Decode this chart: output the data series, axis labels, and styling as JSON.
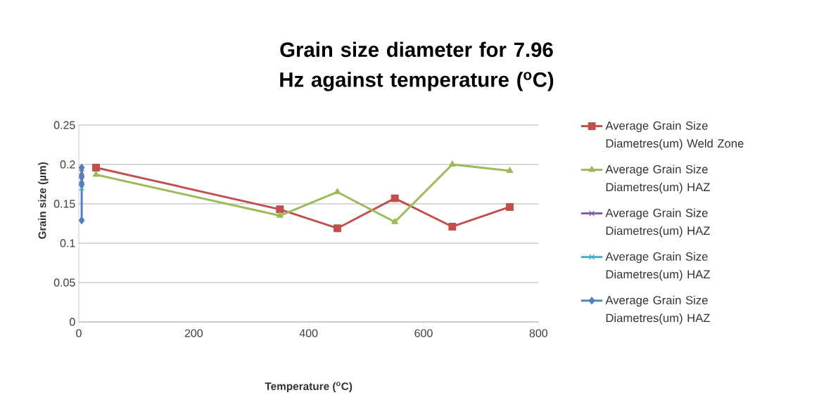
{
  "chart_data": {
    "type": "line",
    "title": "Grain size diameter for 7.96 Hz against temperature ($^{o}$C)",
    "xlabel": "Temperature ($^{o}$C)",
    "ylabel": "Grain size (µm)",
    "xlim": [
      0,
      800
    ],
    "xticks": [
      0,
      200,
      400,
      600,
      800
    ],
    "ylim": [
      0,
      0.25
    ],
    "yticks": [
      0,
      0.05,
      0.1,
      0.15,
      0.2,
      0.25
    ],
    "grid": "y",
    "legend": "right",
    "line_style": "solid",
    "series": [
      {
        "name": "Average Grain Size Diametres(um) Weld Zone",
        "color": "#c0504d",
        "marker": "square",
        "x": [
          30,
          350,
          450,
          550,
          650,
          750
        ],
        "values": [
          0.196,
          0.143,
          0.119,
          0.157,
          0.121,
          0.146
        ]
      },
      {
        "name": "Average Grain Size Diametres(um) HAZ",
        "color": "#9bbb59",
        "marker": "triangle",
        "x": [
          30,
          350,
          450,
          550,
          650,
          750
        ],
        "values": [
          0.187,
          0.135,
          0.165,
          0.127,
          0.2,
          0.192
        ]
      },
      {
        "name": "Average Grain Size Diametres(um) HAZ",
        "color": "#7f5fa0",
        "marker": "cross",
        "x": [
          5,
          5
        ],
        "values": [
          0.18,
          0.19
        ]
      },
      {
        "name": "Average Grain Size Diametres(um) HAZ",
        "color": "#4bacc6",
        "marker": "cross",
        "x": [
          5
        ],
        "values": [
          0.17
        ]
      },
      {
        "name": "Average Grain Size Diametres(um) HAZ",
        "color": "#4f81bd",
        "marker": "diamond",
        "x": [
          5,
          5,
          5,
          5
        ],
        "values": [
          0.129,
          0.175,
          0.185,
          0.196
        ]
      }
    ]
  }
}
